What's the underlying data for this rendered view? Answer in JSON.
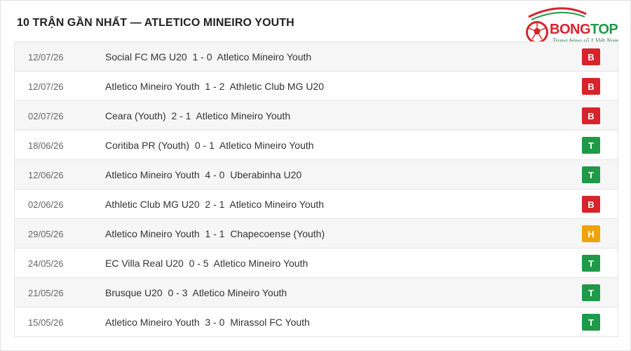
{
  "header": {
    "title": "10 TRẬN GẦN NHẤT — ATLETICO MINEIRO YOUTH"
  },
  "logo": {
    "brand_part1": "BONG",
    "brand_part2": "TOP",
    "tagline": "Trang bóng số 1 Việt Nam"
  },
  "colors": {
    "B": "#d8232a",
    "T": "#1e9a48",
    "H": "#f0a20a"
  },
  "matches": [
    {
      "date": "12/07/26",
      "home": "Social FC MG U20",
      "score": "1 - 0",
      "away": "Atletico Mineiro Youth",
      "result": "B"
    },
    {
      "date": "12/07/26",
      "home": "Atletico Mineiro Youth",
      "score": "1 - 2",
      "away": "Athletic Club MG U20",
      "result": "B"
    },
    {
      "date": "02/07/26",
      "home": "Ceara (Youth)",
      "score": "2 - 1",
      "away": "Atletico Mineiro Youth",
      "result": "B"
    },
    {
      "date": "18/06/26",
      "home": "Coritiba PR (Youth)",
      "score": "0 - 1",
      "away": "Atletico Mineiro Youth",
      "result": "T"
    },
    {
      "date": "12/06/26",
      "home": "Atletico Mineiro Youth",
      "score": "4 - 0",
      "away": "Uberabinha U20",
      "result": "T"
    },
    {
      "date": "02/06/26",
      "home": "Athletic Club MG U20",
      "score": "2 - 1",
      "away": "Atletico Mineiro Youth",
      "result": "B"
    },
    {
      "date": "29/05/26",
      "home": "Atletico Mineiro Youth",
      "score": "1 - 1",
      "away": "Chapecoense (Youth)",
      "result": "H"
    },
    {
      "date": "24/05/26",
      "home": "EC Villa Real U20",
      "score": "0 - 5",
      "away": "Atletico Mineiro Youth",
      "result": "T"
    },
    {
      "date": "21/05/26",
      "home": "Brusque U20",
      "score": "0 - 3",
      "away": "Atletico Mineiro Youth",
      "result": "T"
    },
    {
      "date": "15/05/26",
      "home": "Atletico Mineiro Youth",
      "score": "3 - 0",
      "away": "Mirassol FC Youth",
      "result": "T"
    }
  ]
}
